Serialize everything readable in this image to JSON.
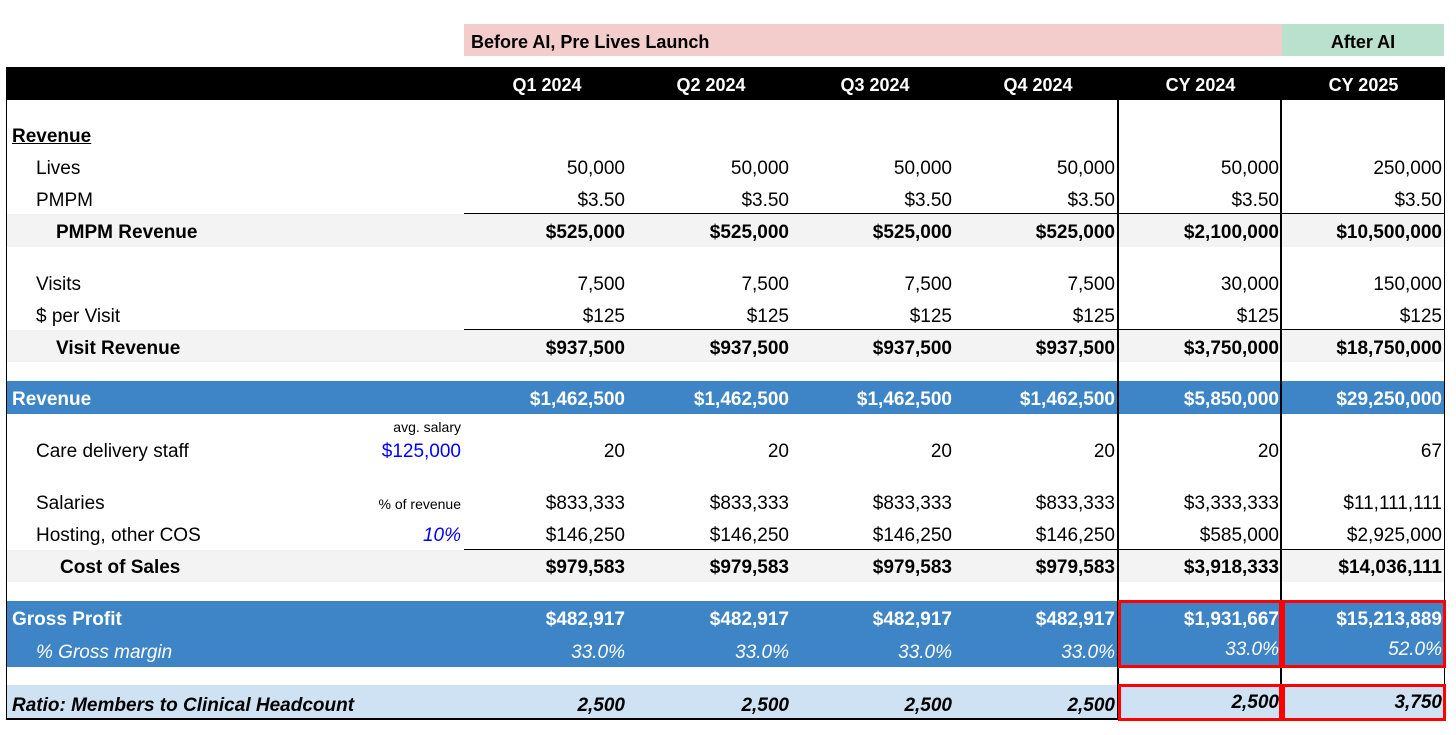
{
  "banners": {
    "before": "Before AI, Pre Lives Launch",
    "after": "After AI"
  },
  "columns": [
    "Q1 2024",
    "Q2 2024",
    "Q3 2024",
    "Q4 2024",
    "CY 2024",
    "CY 2025"
  ],
  "section_title": "Revenue",
  "rows": {
    "lives": {
      "label": "Lives",
      "values": [
        "50,000",
        "50,000",
        "50,000",
        "50,000",
        "50,000",
        "250,000"
      ]
    },
    "pmpm": {
      "label": "PMPM",
      "values": [
        "$3.50",
        "$3.50",
        "$3.50",
        "$3.50",
        "$3.50",
        "$3.50"
      ]
    },
    "pmpm_revenue": {
      "label": "PMPM Revenue",
      "values": [
        "$525,000",
        "$525,000",
        "$525,000",
        "$525,000",
        "$2,100,000",
        "$10,500,000"
      ]
    },
    "visits": {
      "label": "Visits",
      "values": [
        "7,500",
        "7,500",
        "7,500",
        "7,500",
        "30,000",
        "150,000"
      ]
    },
    "per_visit": {
      "label": "$ per Visit",
      "values": [
        "$125",
        "$125",
        "$125",
        "$125",
        "$125",
        "$125"
      ]
    },
    "visit_revenue": {
      "label": "Visit Revenue",
      "values": [
        "$937,500",
        "$937,500",
        "$937,500",
        "$937,500",
        "$3,750,000",
        "$18,750,000"
      ]
    },
    "revenue_total": {
      "label": "Revenue",
      "values": [
        "$1,462,500",
        "$1,462,500",
        "$1,462,500",
        "$1,462,500",
        "$5,850,000",
        "$29,250,000"
      ]
    },
    "care_staff": {
      "label": "Care delivery staff",
      "note": "avg. salary",
      "input": "$125,000",
      "values": [
        "20",
        "20",
        "20",
        "20",
        "20",
        "67"
      ]
    },
    "salaries": {
      "label": "Salaries",
      "note": "% of revenue",
      "values": [
        "$833,333",
        "$833,333",
        "$833,333",
        "$833,333",
        "$3,333,333",
        "$11,111,111"
      ]
    },
    "hosting": {
      "label": "Hosting, other COS",
      "input": "10%",
      "values": [
        "$146,250",
        "$146,250",
        "$146,250",
        "$146,250",
        "$585,000",
        "$2,925,000"
      ]
    },
    "cost_of_sales": {
      "label": "Cost of Sales",
      "values": [
        "$979,583",
        "$979,583",
        "$979,583",
        "$979,583",
        "$3,918,333",
        "$14,036,111"
      ]
    },
    "gross_profit": {
      "label": "Gross Profit",
      "values": [
        "$482,917",
        "$482,917",
        "$482,917",
        "$482,917",
        "$1,931,667",
        "$15,213,889"
      ]
    },
    "gross_margin": {
      "label": "% Gross margin",
      "values": [
        "33.0%",
        "33.0%",
        "33.0%",
        "33.0%",
        "33.0%",
        "52.0%"
      ]
    },
    "ratio": {
      "label": "Ratio: Members to Clinical Headcount",
      "values": [
        "2,500",
        "2,500",
        "2,500",
        "2,500",
        "2,500",
        "3,750"
      ]
    }
  }
}
